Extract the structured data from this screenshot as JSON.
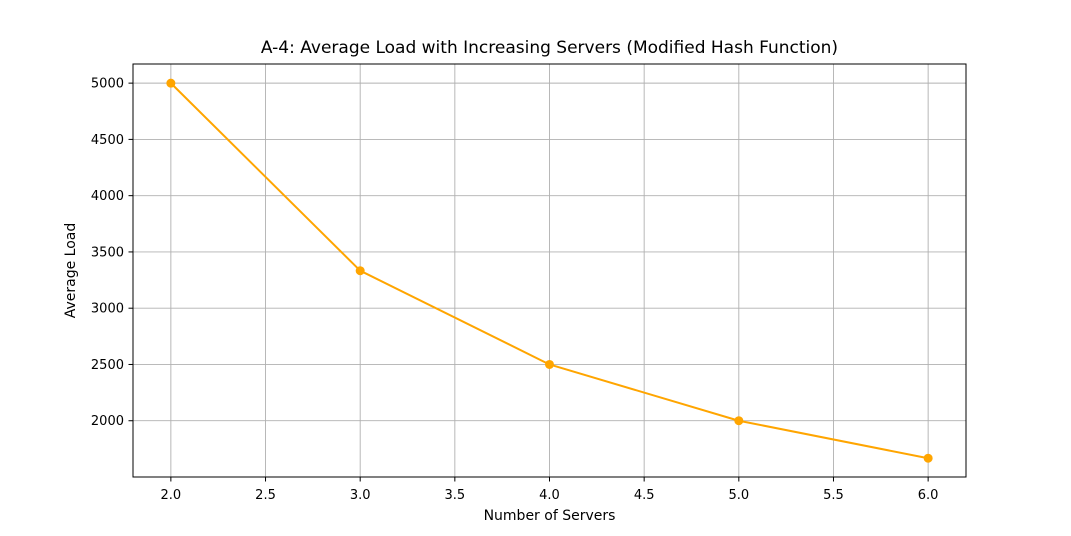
{
  "chart_data": {
    "type": "line",
    "title": "A-4: Average Load with Increasing Servers (Modified Hash Function)",
    "xlabel": "Number of Servers",
    "ylabel": "Average Load",
    "x": [
      2,
      3,
      4,
      5,
      6
    ],
    "series": [
      {
        "values": [
          5000,
          3333.33,
          2500,
          2000,
          1666.67
        ],
        "color": "#ffa500",
        "marker": "circle"
      }
    ],
    "xlim": [
      1.8,
      6.2
    ],
    "ylim": [
      1500,
      5170
    ],
    "xticks": [
      2.0,
      2.5,
      3.0,
      3.5,
      4.0,
      4.5,
      5.0,
      5.5,
      6.0
    ],
    "xtick_labels": [
      "2.0",
      "2.5",
      "3.0",
      "3.5",
      "4.0",
      "4.5",
      "5.0",
      "5.5",
      "6.0"
    ],
    "yticks": [
      2000,
      2500,
      3000,
      3500,
      4000,
      4500,
      5000
    ],
    "ytick_labels": [
      "2000",
      "2500",
      "3000",
      "3500",
      "4000",
      "4500",
      "5000"
    ],
    "grid": true,
    "grid_color": "#b0b0b0",
    "legend": "none"
  }
}
